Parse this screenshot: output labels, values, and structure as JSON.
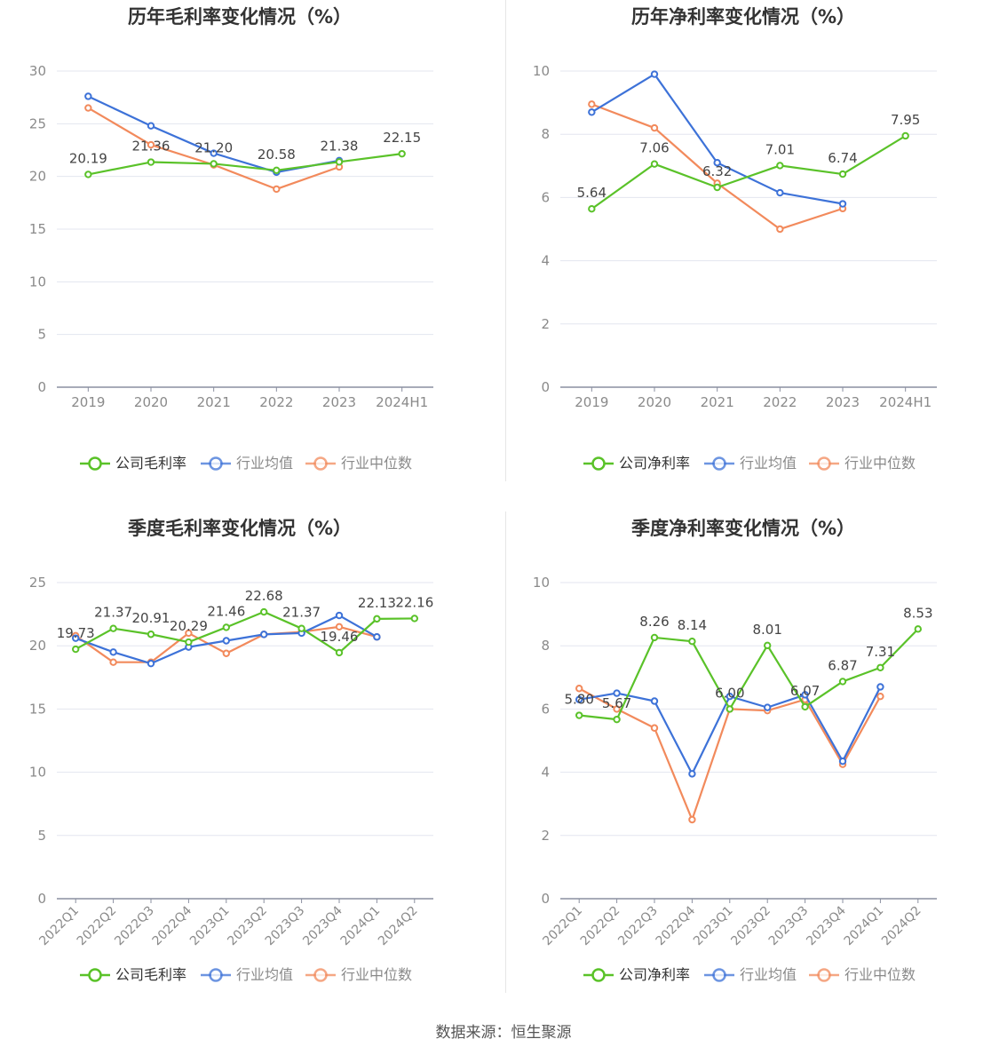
{
  "source": "数据来源：恒生聚源",
  "colors": {
    "company": "#5ac229",
    "avg": "#3d72d8",
    "median": "#f28a5c",
    "grid": "#e3e6ef",
    "axis": "#8a8fa0"
  },
  "legend_icon": "circle-line-icon",
  "chart_data": [
    {
      "type": "line",
      "title": "历年毛利率变化情况（%）",
      "categories": [
        "2019",
        "2020",
        "2021",
        "2022",
        "2023",
        "2024H1"
      ],
      "ylim": [
        0,
        30
      ],
      "yticks": [
        0,
        5,
        10,
        15,
        20,
        25,
        30
      ],
      "rotate_x": false,
      "grid": true,
      "legend_position": "bottom",
      "series": [
        {
          "name": "公司毛利率",
          "key": "company",
          "values": [
            20.19,
            21.36,
            21.2,
            20.58,
            21.38,
            22.15
          ],
          "labels": [
            "20.19",
            "21.36",
            "21.20",
            "20.58",
            "21.38",
            "22.15"
          ]
        },
        {
          "name": "行业均值",
          "key": "avg",
          "values": [
            27.6,
            24.8,
            22.2,
            20.4,
            21.5,
            null
          ],
          "labels": []
        },
        {
          "name": "行业中位数",
          "key": "median",
          "values": [
            26.5,
            23.0,
            21.1,
            18.8,
            20.9,
            null
          ],
          "labels": []
        }
      ]
    },
    {
      "type": "line",
      "title": "历年净利率变化情况（%）",
      "categories": [
        "2019",
        "2020",
        "2021",
        "2022",
        "2023",
        "2024H1"
      ],
      "ylim": [
        0,
        10
      ],
      "yticks": [
        0,
        2,
        4,
        6,
        8,
        10
      ],
      "rotate_x": false,
      "grid": true,
      "legend_position": "bottom",
      "series": [
        {
          "name": "公司净利率",
          "key": "company",
          "values": [
            5.64,
            7.06,
            6.32,
            7.01,
            6.74,
            7.95
          ],
          "labels": [
            "5.64",
            "7.06",
            "6.32",
            "7.01",
            "6.74",
            "7.95"
          ]
        },
        {
          "name": "行业均值",
          "key": "avg",
          "values": [
            8.7,
            9.9,
            7.1,
            6.15,
            5.8,
            null
          ],
          "labels": []
        },
        {
          "name": "行业中位数",
          "key": "median",
          "values": [
            8.95,
            8.2,
            6.45,
            5.0,
            5.65,
            null
          ],
          "labels": []
        }
      ]
    },
    {
      "type": "line",
      "title": "季度毛利率变化情况（%）",
      "categories": [
        "2022Q1",
        "2022Q2",
        "2022Q3",
        "2022Q4",
        "2023Q1",
        "2023Q2",
        "2023Q3",
        "2023Q4",
        "2024Q1",
        "2024Q2"
      ],
      "ylim": [
        0,
        25
      ],
      "yticks": [
        0,
        5,
        10,
        15,
        20,
        25
      ],
      "rotate_x": true,
      "grid": true,
      "legend_position": "bottom",
      "series": [
        {
          "name": "公司毛利率",
          "key": "company",
          "values": [
            19.73,
            21.37,
            20.91,
            20.29,
            21.46,
            22.68,
            21.37,
            19.46,
            22.13,
            22.16
          ],
          "labels": [
            "19.73",
            "21.37",
            "20.91",
            "20.29",
            "21.46",
            "22.68",
            "21.37",
            "19.46",
            "22.13",
            "22.16"
          ]
        },
        {
          "name": "行业均值",
          "key": "avg",
          "values": [
            20.6,
            19.5,
            18.6,
            19.9,
            20.4,
            20.9,
            21.0,
            22.4,
            20.7,
            null
          ],
          "labels": []
        },
        {
          "name": "行业中位数",
          "key": "median",
          "values": [
            20.8,
            18.7,
            18.7,
            21.0,
            19.4,
            20.9,
            21.1,
            21.5,
            20.7,
            null
          ],
          "labels": []
        }
      ]
    },
    {
      "type": "line",
      "title": "季度净利率变化情况（%）",
      "categories": [
        "2022Q1",
        "2022Q2",
        "2022Q3",
        "2022Q4",
        "2023Q1",
        "2023Q2",
        "2023Q3",
        "2023Q4",
        "2024Q1",
        "2024Q2"
      ],
      "ylim": [
        0,
        10
      ],
      "yticks": [
        0,
        2,
        4,
        6,
        8,
        10
      ],
      "rotate_x": true,
      "grid": true,
      "legend_position": "bottom",
      "series": [
        {
          "name": "公司净利率",
          "key": "company",
          "values": [
            5.8,
            5.67,
            8.26,
            8.14,
            6.0,
            8.01,
            6.07,
            6.87,
            7.31,
            8.53
          ],
          "labels": [
            "5.80",
            "5.67",
            "8.26",
            "8.14",
            "6.00",
            "8.01",
            "6.07",
            "6.87",
            "7.31",
            "8.53"
          ]
        },
        {
          "name": "行业均值",
          "key": "avg",
          "values": [
            6.3,
            6.5,
            6.25,
            3.95,
            6.4,
            6.05,
            6.45,
            4.35,
            6.7,
            null
          ],
          "labels": []
        },
        {
          "name": "行业中位数",
          "key": "median",
          "values": [
            6.65,
            6.0,
            5.4,
            2.5,
            6.0,
            5.95,
            6.3,
            4.25,
            6.4,
            null
          ],
          "labels": []
        }
      ]
    }
  ]
}
